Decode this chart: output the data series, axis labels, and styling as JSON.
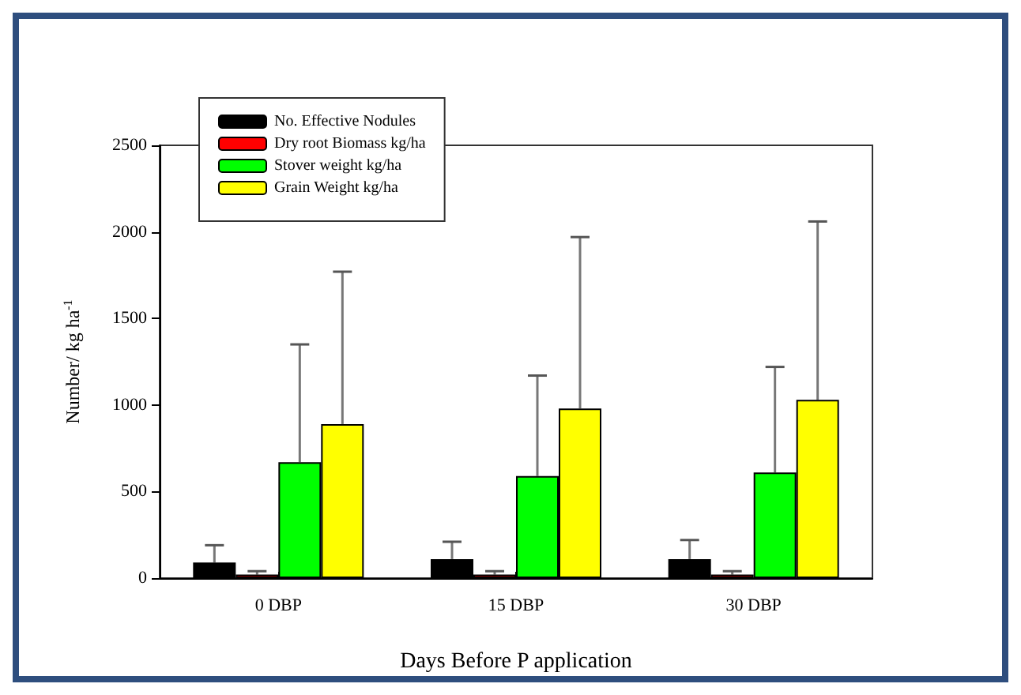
{
  "chart_data": {
    "type": "bar",
    "xlabel": "Days Before P application",
    "ylabel": "Number/ kg ha$^{-1}$",
    "categories": [
      "0 DBP",
      "15 DBP",
      "30 DBP"
    ],
    "series": [
      {
        "name": "No. Effective Nodules",
        "color": "#000000",
        "values": [
          90,
          110,
          110
        ],
        "errors": [
          [
            90,
            190
          ],
          [
            110,
            210
          ],
          [
            110,
            220
          ]
        ]
      },
      {
        "name": "Dry root Biomass kg/ha",
        "color": "#ff0000",
        "values": [
          20,
          20,
          20
        ],
        "errors": [
          [
            20,
            40
          ],
          [
            20,
            40
          ],
          [
            20,
            40
          ]
        ]
      },
      {
        "name": "Stover weight kg/ha",
        "color": "#00ff00",
        "values": [
          670,
          590,
          610
        ],
        "errors": [
          [
            670,
            1350
          ],
          [
            590,
            1170
          ],
          [
            610,
            1220
          ]
        ]
      },
      {
        "name": "Grain Weight kg/ha",
        "color": "#ffff00",
        "values": [
          890,
          980,
          1030
        ],
        "errors": [
          [
            890,
            1770
          ],
          [
            980,
            1970
          ],
          [
            1030,
            2060
          ]
        ]
      }
    ],
    "ylim": [
      0,
      2500
    ],
    "yticks": [
      0,
      500,
      1000,
      1500,
      2000,
      2500
    ],
    "grid": false,
    "legend": "top left"
  }
}
